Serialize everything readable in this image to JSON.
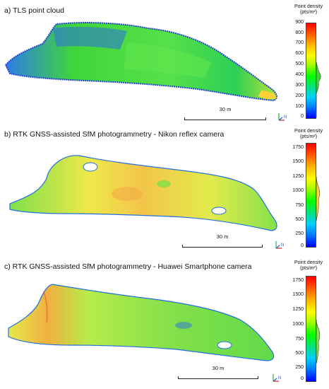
{
  "panels": [
    {
      "title": "a) TLS point cloud",
      "colorbar_title": "Point density\n(pts/m²)",
      "colorbar_ticks": [
        "900",
        "800",
        "700",
        "600",
        "500",
        "400",
        "300",
        "200",
        "100",
        "0"
      ],
      "scalebar_label": "30 m",
      "north_label": "N"
    },
    {
      "title": "b) RTK GNSS-assisted SfM photogrammetry - Nikon reflex camera",
      "colorbar_title": "Point density\n(pts/m²)",
      "colorbar_ticks": [
        "1750",
        "1500",
        "1250",
        "1000",
        "750",
        "500",
        "250",
        "0"
      ],
      "scalebar_label": "30 m",
      "north_label": "N"
    },
    {
      "title": "c) RTK GNSS-assisted SfM photogrammetry - Huawei Smartphone camera",
      "colorbar_title": "Point density\n(pts/m²)",
      "colorbar_ticks": [
        "1750",
        "1500",
        "1250",
        "1000",
        "750",
        "500",
        "250",
        "0"
      ],
      "scalebar_label": "30 m",
      "north_label": "N"
    }
  ],
  "colors": {
    "density_low": "#0000ff",
    "density_mid": "#00ff00",
    "density_high": "#ff0000",
    "panel_a_fill": "#3fd63a",
    "panel_b_fill": "#e6e84a",
    "panel_c_fill": "#8ee64a"
  }
}
